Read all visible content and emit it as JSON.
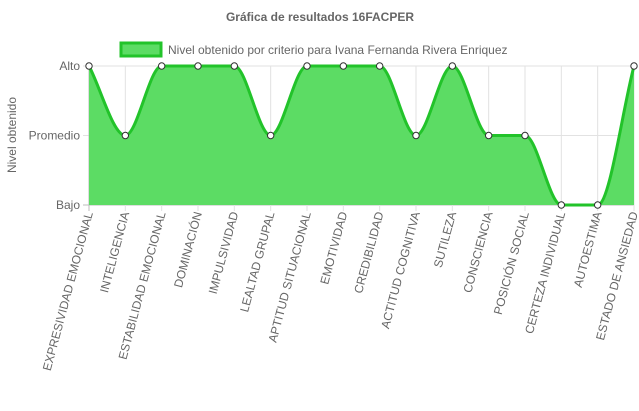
{
  "chart_data": {
    "type": "area",
    "title": "Gráfica de resultados 16FACPER",
    "ylabel": "Nivel obtenido",
    "xlabel": "",
    "y_levels": [
      "Bajo",
      "Promedio",
      "Alto"
    ],
    "ylim": [
      0,
      2
    ],
    "categories": [
      "EXPRESIVIDAD EMOCIONAL",
      "INTELIGENCIA",
      "ESTABILIDAD EMOCIONAL",
      "DOMINACIÓN",
      "IMPULSIVIDAD",
      "LEALTAD GRUPAL",
      "APTITUD SITUACIONAL",
      "EMOTIVIDAD",
      "CREDIBILIDAD",
      "ACTITUD COGNITIVA",
      "SUTILEZA",
      "CONSCIENCIA",
      "POSICIÓN SOCIAL",
      "CERTEZA INDIVIDUAL",
      "AUTOESTIMA",
      "ESTADO DE ANSIEDAD"
    ],
    "series": [
      {
        "name": "Nivel obtenido por criterio para Ivana Fernanda Rivera Enriquez",
        "values": [
          2,
          1,
          2,
          2,
          2,
          1,
          2,
          2,
          2,
          1,
          2,
          1,
          1,
          0,
          0,
          2
        ],
        "color": "#22c32a",
        "fill": "#5cdc64"
      }
    ],
    "legend_position": "top",
    "grid": true
  }
}
